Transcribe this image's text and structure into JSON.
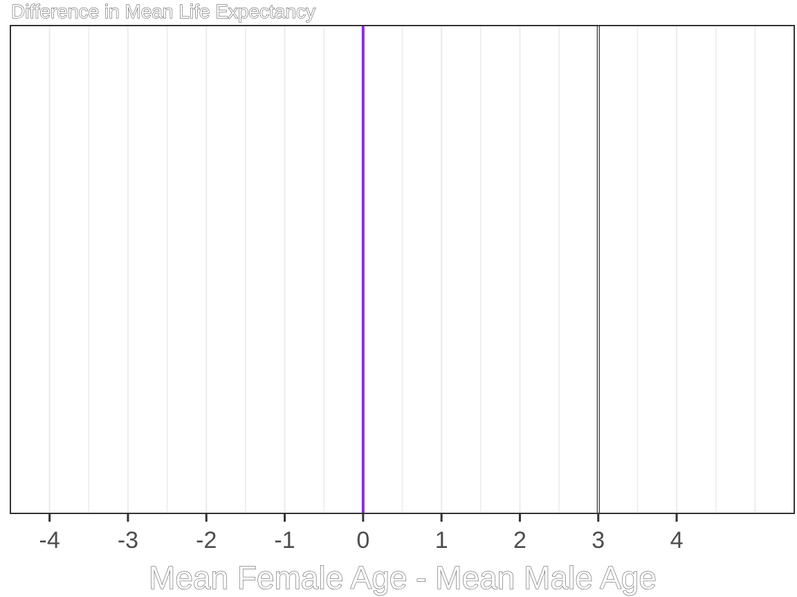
{
  "chart_data": {
    "type": "line",
    "title": "Difference in Mean Life Expectancy",
    "xlabel": "Mean Female Age - Mean Male Age",
    "ylabel": "",
    "xlim": [
      -4.5,
      5.5
    ],
    "x_ticks": [
      -4,
      -3,
      -2,
      -1,
      0,
      1,
      2,
      3,
      4
    ],
    "x_tick_labels": [
      "-4",
      "-3",
      "-2",
      "-1",
      "0",
      "1",
      "2",
      "3",
      "4"
    ],
    "grid": {
      "vertical": true,
      "horizontal": false,
      "minor": true
    },
    "y_axis_visible": false,
    "reference_lines": [
      {
        "x": 0,
        "color": "#8a2be2",
        "style": "solid"
      },
      {
        "x": 3,
        "color": "#000000",
        "style": "outlined"
      }
    ],
    "colors": {
      "zero_line": "#8a2be2",
      "observed_line_outline": "#000000",
      "grid": "#ebebeb",
      "panel_border": "#333333",
      "tick_label": "#4d4d4d"
    }
  }
}
